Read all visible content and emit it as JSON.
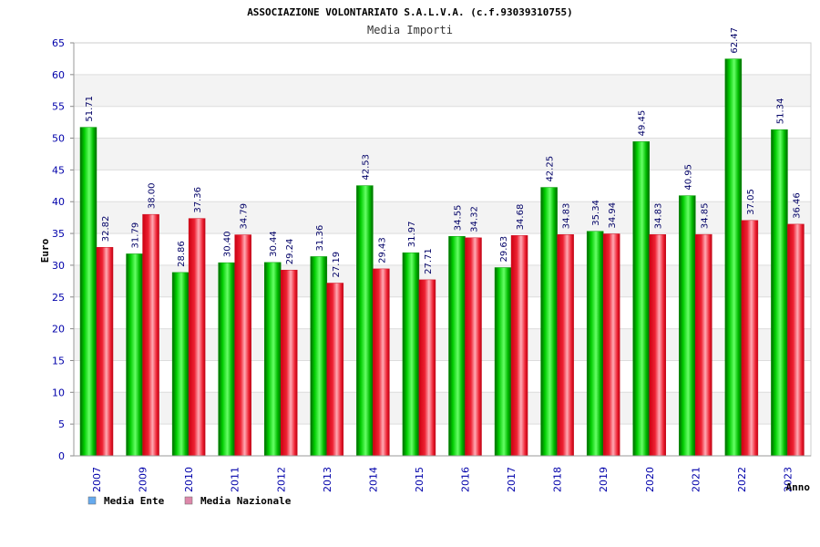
{
  "chart_data": {
    "type": "bar",
    "title": "ASSOCIAZIONE VOLONTARIATO S.A.L.V.A. (c.f.93039310755)",
    "subtitle": "Media Importi",
    "xlabel": "Anno",
    "ylabel": "Euro",
    "ylim": [
      0,
      65
    ],
    "yticks": [
      0,
      5,
      10,
      15,
      20,
      25,
      30,
      35,
      40,
      45,
      50,
      55,
      60,
      65
    ],
    "grid": true,
    "legend_position": "bottom-left",
    "categories": [
      "2007",
      "2009",
      "2010",
      "2011",
      "2012",
      "2013",
      "2014",
      "2015",
      "2016",
      "2017",
      "2018",
      "2019",
      "2020",
      "2021",
      "2022",
      "2023"
    ],
    "series": [
      {
        "name": "Media Ente",
        "color": "#00bb00",
        "legend_color": "#66aaee",
        "values": [
          51.71,
          31.79,
          28.86,
          30.4,
          30.44,
          31.36,
          42.53,
          31.97,
          34.55,
          29.63,
          42.25,
          35.34,
          49.45,
          40.95,
          62.47,
          51.34
        ],
        "labels": [
          "51.71",
          "31.79",
          "28.86",
          "30.40",
          "30.44",
          "31.36",
          "42.53",
          "31.97",
          "34.55",
          "29.63",
          "42.25",
          "35.34",
          "49.45",
          "40.95",
          "62.47",
          "51.34"
        ]
      },
      {
        "name": "Media Nazionale",
        "color": "#ee2233",
        "legend_color": "#dd88aa",
        "values": [
          32.82,
          38.0,
          37.36,
          34.79,
          29.24,
          27.19,
          29.43,
          27.71,
          34.32,
          34.68,
          34.83,
          34.94,
          34.83,
          34.85,
          37.05,
          36.46
        ],
        "labels": [
          "32.82",
          "38.00",
          "37.36",
          "34.79",
          "29.24",
          "27.19",
          "29.43",
          "27.71",
          "34.32",
          "34.68",
          "34.83",
          "34.94",
          "34.83",
          "34.85",
          "37.05",
          "36.46"
        ]
      }
    ]
  }
}
